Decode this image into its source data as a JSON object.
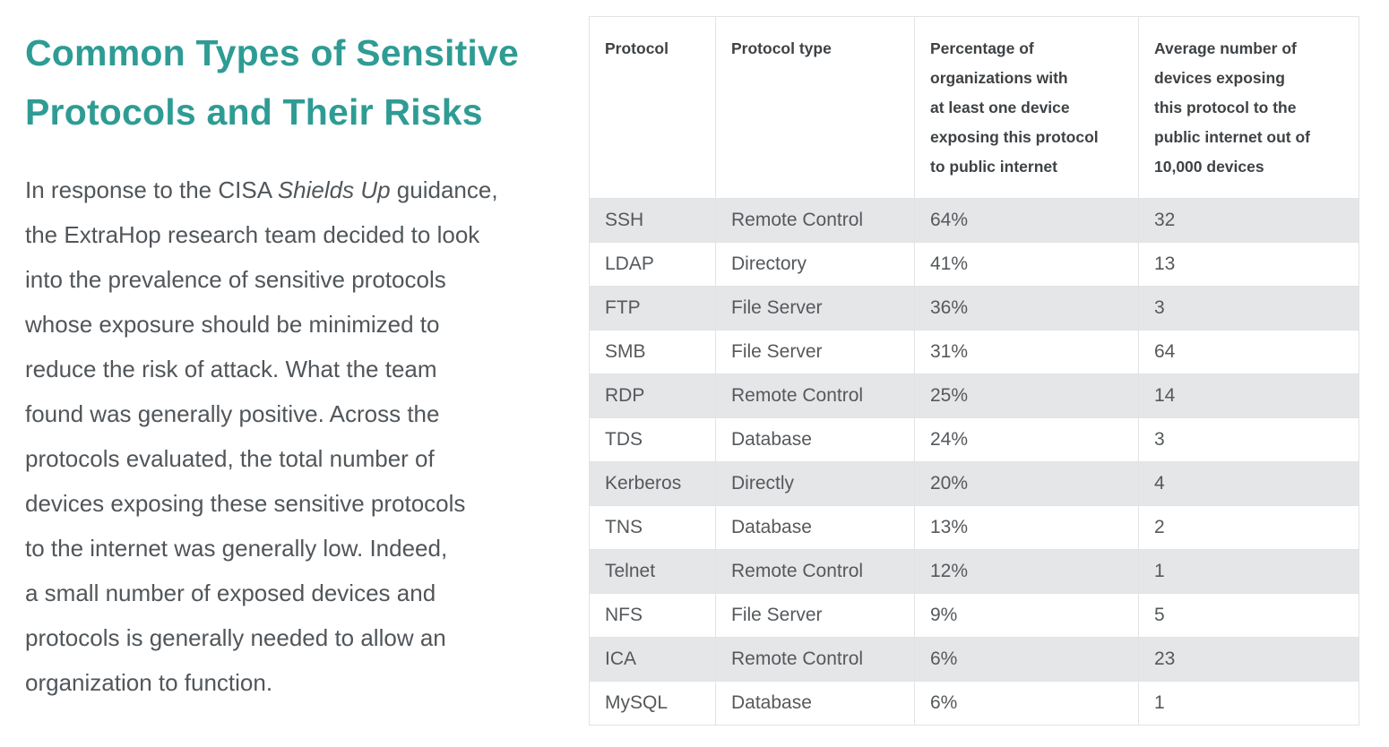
{
  "colors": {
    "accent_teal": "#2e9c94",
    "body_text": "#51565a",
    "header_text": "#3e4245",
    "cell_text": "#55595c",
    "row_stripe": "#e5e6e8",
    "table_border": "#e2e3e4",
    "background": "#ffffff"
  },
  "intro": {
    "title_lines": [
      "Common Types of Sensitive",
      "Protocols and Their Risks"
    ],
    "para_line1": {
      "pre": "In response to the CISA ",
      "italic": "Shields Up",
      "post": " guidance,"
    },
    "para_lines": [
      "the ExtraHop research team decided to look",
      "into the prevalence of sensitive protocols",
      "whose exposure should be minimized to",
      "reduce the risk of attack. What the team",
      "found was generally positive. Across the",
      "protocols evaluated, the total number of",
      "devices exposing these sensitive protocols",
      "to the internet was generally low. Indeed,",
      "a small number of exposed devices and",
      "protocols is generally needed to allow an",
      "organization to function."
    ]
  },
  "table": {
    "columns": [
      {
        "lines": [
          "Protocol"
        ]
      },
      {
        "lines": [
          "Protocol type"
        ]
      },
      {
        "lines": [
          "Percentage of",
          "organizations with",
          "at least one device",
          "exposing this protocol",
          "to public internet"
        ]
      },
      {
        "lines": [
          "Average number of",
          "devices exposing",
          "this protocol to the",
          "public internet out of",
          "10,000 devices"
        ]
      }
    ],
    "rows": [
      {
        "protocol": "SSH",
        "type": "Remote Control",
        "pct": "64%",
        "avg": "32"
      },
      {
        "protocol": "LDAP",
        "type": "Directory",
        "pct": "41%",
        "avg": "13"
      },
      {
        "protocol": "FTP",
        "type": "File Server",
        "pct": "36%",
        "avg": "3"
      },
      {
        "protocol": "SMB",
        "type": "File Server",
        "pct": "31%",
        "avg": "64"
      },
      {
        "protocol": "RDP",
        "type": "Remote Control",
        "pct": "25%",
        "avg": "14"
      },
      {
        "protocol": "TDS",
        "type": "Database",
        "pct": "24%",
        "avg": "3"
      },
      {
        "protocol": "Kerberos",
        "type": "Directly",
        "pct": "20%",
        "avg": "4"
      },
      {
        "protocol": "TNS",
        "type": "Database",
        "pct": "13%",
        "avg": "2"
      },
      {
        "protocol": "Telnet",
        "type": "Remote Control",
        "pct": "12%",
        "avg": "1"
      },
      {
        "protocol": "NFS",
        "type": "File Server",
        "pct": "9%",
        "avg": "5"
      },
      {
        "protocol": "ICA",
        "type": "Remote Control",
        "pct": "6%",
        "avg": "23"
      },
      {
        "protocol": "MySQL",
        "type": "Database",
        "pct": "6%",
        "avg": "1"
      }
    ]
  }
}
